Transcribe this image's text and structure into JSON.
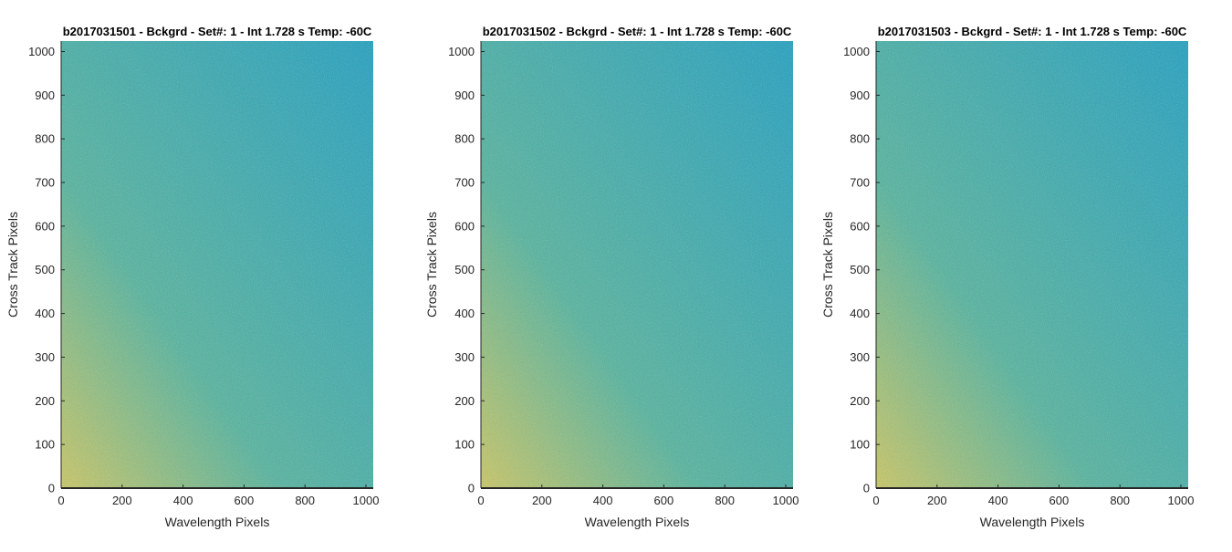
{
  "chart_data": [
    {
      "type": "heatmap",
      "title": "b2017031501 - Bckgrd - Set#: 1 - Int 1.728 s Temp: -60C",
      "xlabel": "Wavelength Pixels",
      "ylabel": "Cross Track Pixels",
      "xlim": [
        0,
        1024
      ],
      "ylim": [
        0,
        1024
      ],
      "xticks": [
        0,
        200,
        400,
        600,
        800,
        1000
      ],
      "yticks": [
        0,
        100,
        200,
        300,
        400,
        500,
        600,
        700,
        800,
        900,
        1000
      ],
      "colormap": "parula",
      "grid": false,
      "colors": {
        "high": "#c9c760",
        "mid": "#4fb39c",
        "low": "#1a9fc0"
      }
    },
    {
      "type": "heatmap",
      "title": "b2017031502 - Bckgrd - Set#: 1 - Int 1.728 s Temp: -60C",
      "xlabel": "Wavelength Pixels",
      "ylabel": "Cross Track Pixels",
      "xlim": [
        0,
        1024
      ],
      "ylim": [
        0,
        1024
      ],
      "xticks": [
        0,
        200,
        400,
        600,
        800,
        1000
      ],
      "yticks": [
        0,
        100,
        200,
        300,
        400,
        500,
        600,
        700,
        800,
        900,
        1000
      ],
      "colormap": "parula",
      "grid": false,
      "colors": {
        "high": "#c9c760",
        "mid": "#4fb39c",
        "low": "#1a9fc0"
      }
    },
    {
      "type": "heatmap",
      "title": "b2017031503 - Bckgrd - Set#: 1 - Int 1.728 s Temp: -60C",
      "xlabel": "Wavelength Pixels",
      "ylabel": "Cross Track Pixels",
      "xlim": [
        0,
        1024
      ],
      "ylim": [
        0,
        1024
      ],
      "xticks": [
        0,
        200,
        400,
        600,
        800,
        1000
      ],
      "yticks": [
        0,
        100,
        200,
        300,
        400,
        500,
        600,
        700,
        800,
        900,
        1000
      ],
      "colormap": "parula",
      "grid": false,
      "colors": {
        "high": "#c9c760",
        "mid": "#4fb39c",
        "low": "#1a9fc0"
      }
    }
  ]
}
